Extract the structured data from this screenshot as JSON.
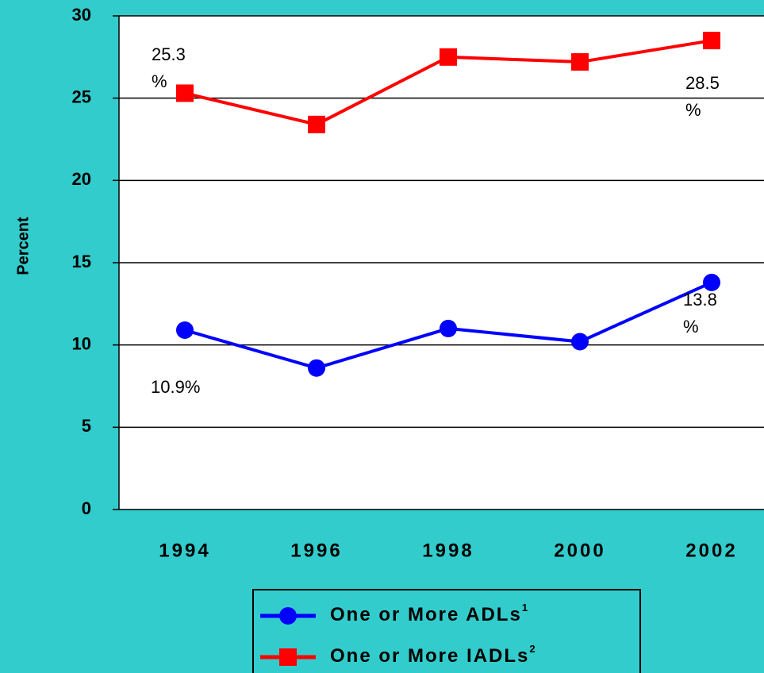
{
  "chart_data": {
    "type": "line",
    "y_label": "Percent",
    "categories": [
      "1994",
      "1996",
      "1998",
      "2000",
      "2002"
    ],
    "series": [
      {
        "name": "One or More ADLs",
        "footnote": "1",
        "color": "#0000ff",
        "marker": "circle",
        "values": [
          10.9,
          8.6,
          11.0,
          10.2,
          13.8
        ],
        "value_labels": [
          "10.9%",
          null,
          null,
          null,
          "13.8 %"
        ]
      },
      {
        "name": "One or More IADLs",
        "footnote": "2",
        "color": "#ff0000",
        "marker": "square",
        "values": [
          25.3,
          23.4,
          27.5,
          27.2,
          28.5
        ],
        "value_labels": [
          "25.3 %",
          null,
          null,
          null,
          "28.5 %"
        ]
      }
    ],
    "ylim": [
      0,
      30
    ],
    "yticks": [
      0,
      5,
      10,
      15,
      20,
      25,
      30
    ],
    "grid": true,
    "legend": "bottom"
  }
}
